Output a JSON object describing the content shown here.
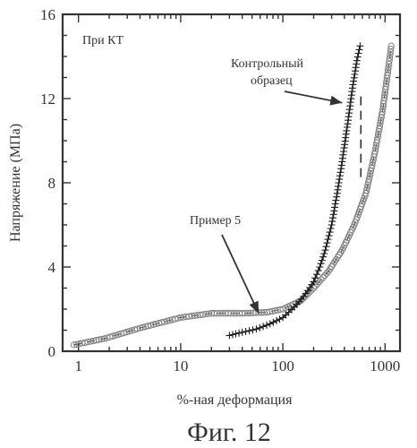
{
  "chart_data": {
    "type": "scatter",
    "panel_label": "При КТ",
    "caption": "Фиг. 12",
    "xlabel": "%-ная деформация",
    "ylabel": "Напряжение (МПа)",
    "x_scale": "log",
    "xlim": [
      0.7,
      1400
    ],
    "ylim": [
      0,
      16
    ],
    "xticks": [
      {
        "value": 1,
        "label": "1"
      },
      {
        "value": 10,
        "label": "10"
      },
      {
        "value": 100,
        "label": "100"
      },
      {
        "value": 1000,
        "label": "1000"
      }
    ],
    "yticks": [
      {
        "value": 0,
        "label": "0"
      },
      {
        "value": 4,
        "label": "4"
      },
      {
        "value": 8,
        "label": "8"
      },
      {
        "value": 12,
        "label": "12"
      },
      {
        "value": 16,
        "label": "16"
      }
    ],
    "grid": false,
    "legend": "none",
    "annotations": [
      {
        "text": "Контрольный образец",
        "series": "control",
        "points_to": [
          380,
          11.8
        ]
      },
      {
        "text": "Пример 5",
        "series": "example5",
        "points_to": [
          58,
          1.8
        ]
      }
    ],
    "series": [
      {
        "id": "control",
        "marker": "plus",
        "points": [
          [
            30,
            0.75
          ],
          [
            40,
            0.9
          ],
          [
            55,
            1.05
          ],
          [
            75,
            1.3
          ],
          [
            100,
            1.6
          ],
          [
            130,
            2.1
          ],
          [
            160,
            2.6
          ],
          [
            200,
            3.3
          ],
          [
            230,
            4.0
          ],
          [
            260,
            4.8
          ],
          [
            300,
            6.0
          ],
          [
            340,
            7.5
          ],
          [
            380,
            9.0
          ],
          [
            430,
            10.8
          ],
          [
            480,
            12.5
          ],
          [
            530,
            13.8
          ],
          [
            570,
            14.5
          ]
        ],
        "dashed_drop": [
          [
            580,
            12.1
          ],
          [
            580,
            8.2
          ]
        ]
      },
      {
        "id": "example5",
        "marker": "dotted-circle",
        "points": [
          [
            0.9,
            0.3
          ],
          [
            1.8,
            0.6
          ],
          [
            4,
            1.1
          ],
          [
            10,
            1.6
          ],
          [
            20,
            1.8
          ],
          [
            40,
            1.8
          ],
          [
            70,
            1.85
          ],
          [
            100,
            2.0
          ],
          [
            150,
            2.4
          ],
          [
            200,
            3.0
          ],
          [
            280,
            3.8
          ],
          [
            380,
            4.8
          ],
          [
            500,
            6.0
          ],
          [
            650,
            7.5
          ],
          [
            800,
            9.5
          ],
          [
            950,
            11.5
          ],
          [
            1080,
            13.5
          ],
          [
            1150,
            14.5
          ]
        ]
      }
    ]
  }
}
